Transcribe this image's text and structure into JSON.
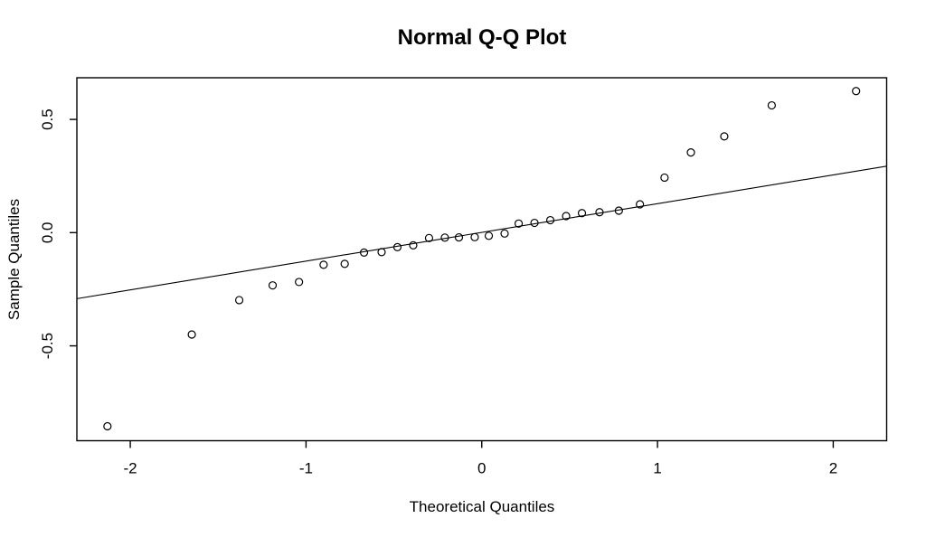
{
  "chart_data": {
    "type": "scatter",
    "title": "Normal Q-Q Plot",
    "xlabel": "Theoretical Quantiles",
    "ylabel": "Sample Quantiles",
    "xlim": [
      -2.304,
      2.304
    ],
    "ylim": [
      -0.919,
      0.684
    ],
    "grid": "off",
    "legend": "none",
    "marker": "open-circle",
    "x_ticks": {
      "values": [
        -2,
        -1,
        0,
        1,
        2
      ],
      "labels": [
        "-2",
        "-1",
        "0",
        "1",
        "2"
      ]
    },
    "y_ticks": {
      "values": [
        -0.5,
        0.0,
        0.5
      ],
      "labels": [
        "-0.5",
        "0.0",
        "0.5"
      ]
    },
    "points": {
      "x": [
        -2.13,
        -1.65,
        -1.38,
        -1.19,
        -1.04,
        -0.9,
        -0.78,
        -0.67,
        -0.57,
        -0.48,
        -0.39,
        -0.3,
        -0.21,
        -0.13,
        -0.04,
        0.04,
        0.13,
        0.21,
        0.3,
        0.39,
        0.48,
        0.57,
        0.67,
        0.78,
        0.9,
        1.04,
        1.19,
        1.38,
        1.65,
        2.13
      ],
      "y": [
        -0.855,
        -0.45,
        -0.298,
        -0.233,
        -0.218,
        -0.142,
        -0.138,
        -0.088,
        -0.086,
        -0.064,
        -0.056,
        -0.024,
        -0.022,
        -0.021,
        -0.02,
        -0.014,
        -0.004,
        0.04,
        0.043,
        0.055,
        0.073,
        0.086,
        0.09,
        0.097,
        0.125,
        0.243,
        0.354,
        0.425,
        0.562,
        0.625
      ]
    },
    "reference_line": {
      "slope": 0.127,
      "intercept": 0.001
    },
    "colors": {
      "foreground": "#000000",
      "background": "#ffffff"
    }
  }
}
